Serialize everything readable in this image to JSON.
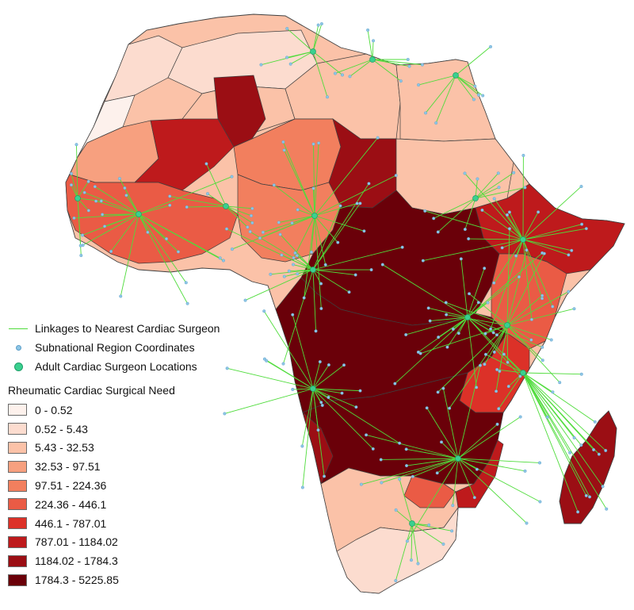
{
  "legend": {
    "linkages": "Linkages to Nearest Cardiac Surgeon",
    "region_coords": "Subnational Region Coordinates",
    "surgeon_locations": "Adult Cardiac Surgeon Locations",
    "title": "Rheumatic Cardiac Surgical Need",
    "classes": [
      {
        "label": "0 - 0.52",
        "color": "#fdf1ec"
      },
      {
        "label": "0.52 - 5.43",
        "color": "#fcdccf"
      },
      {
        "label": "5.43 - 32.53",
        "color": "#fbc2a8"
      },
      {
        "label": "32.53 - 97.51",
        "color": "#f7a07f"
      },
      {
        "label": "97.51 - 224.36",
        "color": "#f27f5e"
      },
      {
        "label": "224.36 - 446.1",
        "color": "#ea5b45"
      },
      {
        "label": "446.1 - 787.01",
        "color": "#dc3128"
      },
      {
        "label": "787.01 - 1184.02",
        "color": "#be1a1c"
      },
      {
        "label": "1184.02 - 1784.3",
        "color": "#9b0e14"
      },
      {
        "label": "1784.3 - 5225.85",
        "color": "#6a0009"
      }
    ]
  },
  "colors": {
    "linkage_line": "#4fdc3b",
    "region_point": "#8ec6e6",
    "surgeon_point": "#3ad08f",
    "border": "#4a4a4a"
  }
}
